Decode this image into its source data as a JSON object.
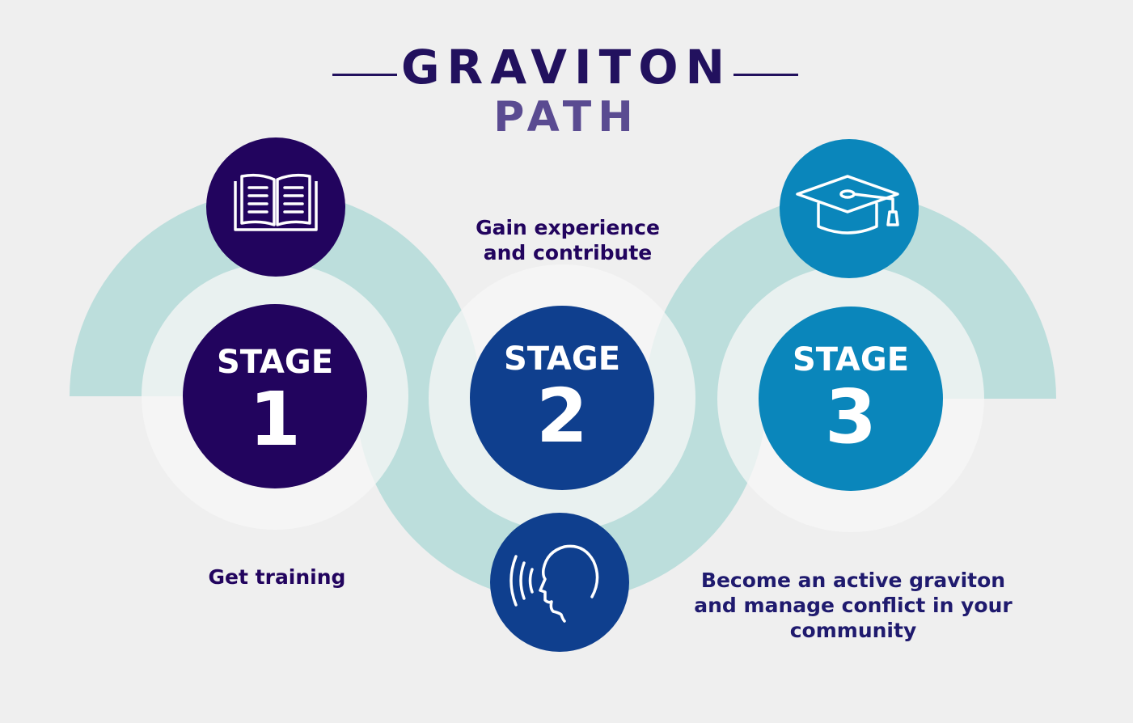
{
  "title": {
    "main": "GRAVITON",
    "sub": "PATH"
  },
  "stages": [
    {
      "word": "STAGE",
      "number": "1",
      "caption_lines": [
        "Get training"
      ],
      "icon": "open-book-icon",
      "color": "#22045e"
    },
    {
      "word": "STAGE",
      "number": "2",
      "caption_lines": [
        "Gain experience",
        "and contribute"
      ],
      "icon": "speaking-head-icon",
      "color": "#0f3f8e"
    },
    {
      "word": "STAGE",
      "number": "3",
      "caption_lines": [
        "Become an active graviton",
        "and manage conflict in your",
        "community"
      ],
      "icon": "graduation-cap-icon",
      "color": "#0a86bb"
    }
  ],
  "colors": {
    "background": "#efefef",
    "arc": "#bcdedc",
    "halo": "#f6f6f6",
    "title": "#22115e",
    "subtitle": "#5a4b91",
    "caption_stage1": "#22045e",
    "caption_stage2": "#22045e",
    "caption_stage3": "#1f1a6e"
  }
}
